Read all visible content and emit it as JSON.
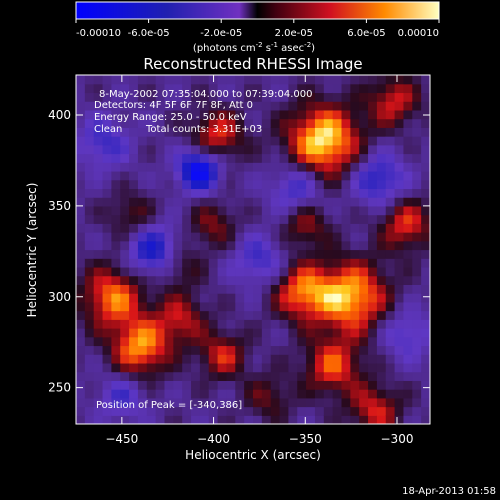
{
  "colorbar": {
    "ticks": [
      {
        "value": -0.0001,
        "label": "-0.00010"
      },
      {
        "value": -6e-05,
        "label": "-6.0e-05"
      },
      {
        "value": -2e-05,
        "label": "-2.0e-05"
      },
      {
        "value": 2e-05,
        "label": "2.0e-05"
      },
      {
        "value": 6e-05,
        "label": "6.0e-05"
      },
      {
        "value": 0.0001,
        "label": "0.00010"
      }
    ],
    "range": [
      -0.0001,
      0.0001
    ],
    "unit_main": "(photons cm",
    "unit_exp1": "-2",
    "unit_mid": " s",
    "unit_exp2": "-1",
    "unit_end": " asec",
    "unit_exp3": "-2",
    "unit_close": ")"
  },
  "chart_data": {
    "type": "heatmap",
    "title": "Reconstructed RHESSI Image",
    "xlabel": "Heliocentric X (arcsec)",
    "ylabel": "Heliocentric Y (arcsec)",
    "xlim": [
      -475,
      -282
    ],
    "ylim": [
      230,
      422
    ],
    "x_ticks": [
      -450,
      -400,
      -350,
      -300
    ],
    "y_ticks": [
      250,
      300,
      350,
      400
    ],
    "peak": [
      -340,
      386
    ],
    "blobs": [
      {
        "x": -340,
        "y": 386,
        "v": 1.0,
        "s": 14
      },
      {
        "x": -398,
        "y": 389,
        "v": 0.6,
        "s": 10
      },
      {
        "x": -302,
        "y": 408,
        "v": 0.55,
        "s": 10
      },
      {
        "x": -325,
        "y": 300,
        "v": 0.9,
        "s": 14
      },
      {
        "x": -352,
        "y": 303,
        "v": 0.7,
        "s": 11
      },
      {
        "x": -455,
        "y": 300,
        "v": 0.75,
        "s": 12
      },
      {
        "x": -418,
        "y": 288,
        "v": 0.5,
        "s": 10
      },
      {
        "x": -440,
        "y": 272,
        "v": 0.8,
        "s": 11
      },
      {
        "x": -395,
        "y": 268,
        "v": 0.55,
        "s": 9
      },
      {
        "x": -335,
        "y": 262,
        "v": 0.65,
        "s": 11
      },
      {
        "x": -312,
        "y": 238,
        "v": 0.55,
        "s": 10
      },
      {
        "x": -295,
        "y": 340,
        "v": 0.6,
        "s": 10
      },
      {
        "x": -350,
        "y": 340,
        "v": 0.45,
        "s": 9
      },
      {
        "x": -400,
        "y": 340,
        "v": 0.4,
        "s": 9
      },
      {
        "x": -445,
        "y": 345,
        "v": 0.35,
        "s": 9
      },
      {
        "x": -420,
        "y": 318,
        "v": 0.4,
        "s": 9
      },
      {
        "x": -370,
        "y": 245,
        "v": 0.35,
        "s": 9
      },
      {
        "x": -408,
        "y": 370,
        "v": -1.0,
        "s": 8
      },
      {
        "x": -432,
        "y": 325,
        "v": -0.75,
        "s": 10
      },
      {
        "x": -310,
        "y": 365,
        "v": -0.6,
        "s": 10
      },
      {
        "x": -355,
        "y": 360,
        "v": -0.5,
        "s": 10
      },
      {
        "x": -460,
        "y": 385,
        "v": -0.45,
        "s": 10
      },
      {
        "x": -375,
        "y": 320,
        "v": -0.45,
        "s": 10
      },
      {
        "x": -295,
        "y": 280,
        "v": -0.4,
        "s": 10
      },
      {
        "x": -450,
        "y": 245,
        "v": -0.4,
        "s": 9
      }
    ]
  },
  "info": {
    "time_range": "8-May-2002 07:35:04.000 to 07:39:04.000",
    "detectors": "Detectors: 4F 5F 6F 7F 8F, Att 0",
    "energy": "Energy Range: 25.0 - 50.0 keV",
    "method": "Clean",
    "counts": "Total counts: 3.31E+03",
    "peak_text": "Position of Peak = [-340,386]"
  },
  "footer_date": "18-Apr-2013 01:58"
}
